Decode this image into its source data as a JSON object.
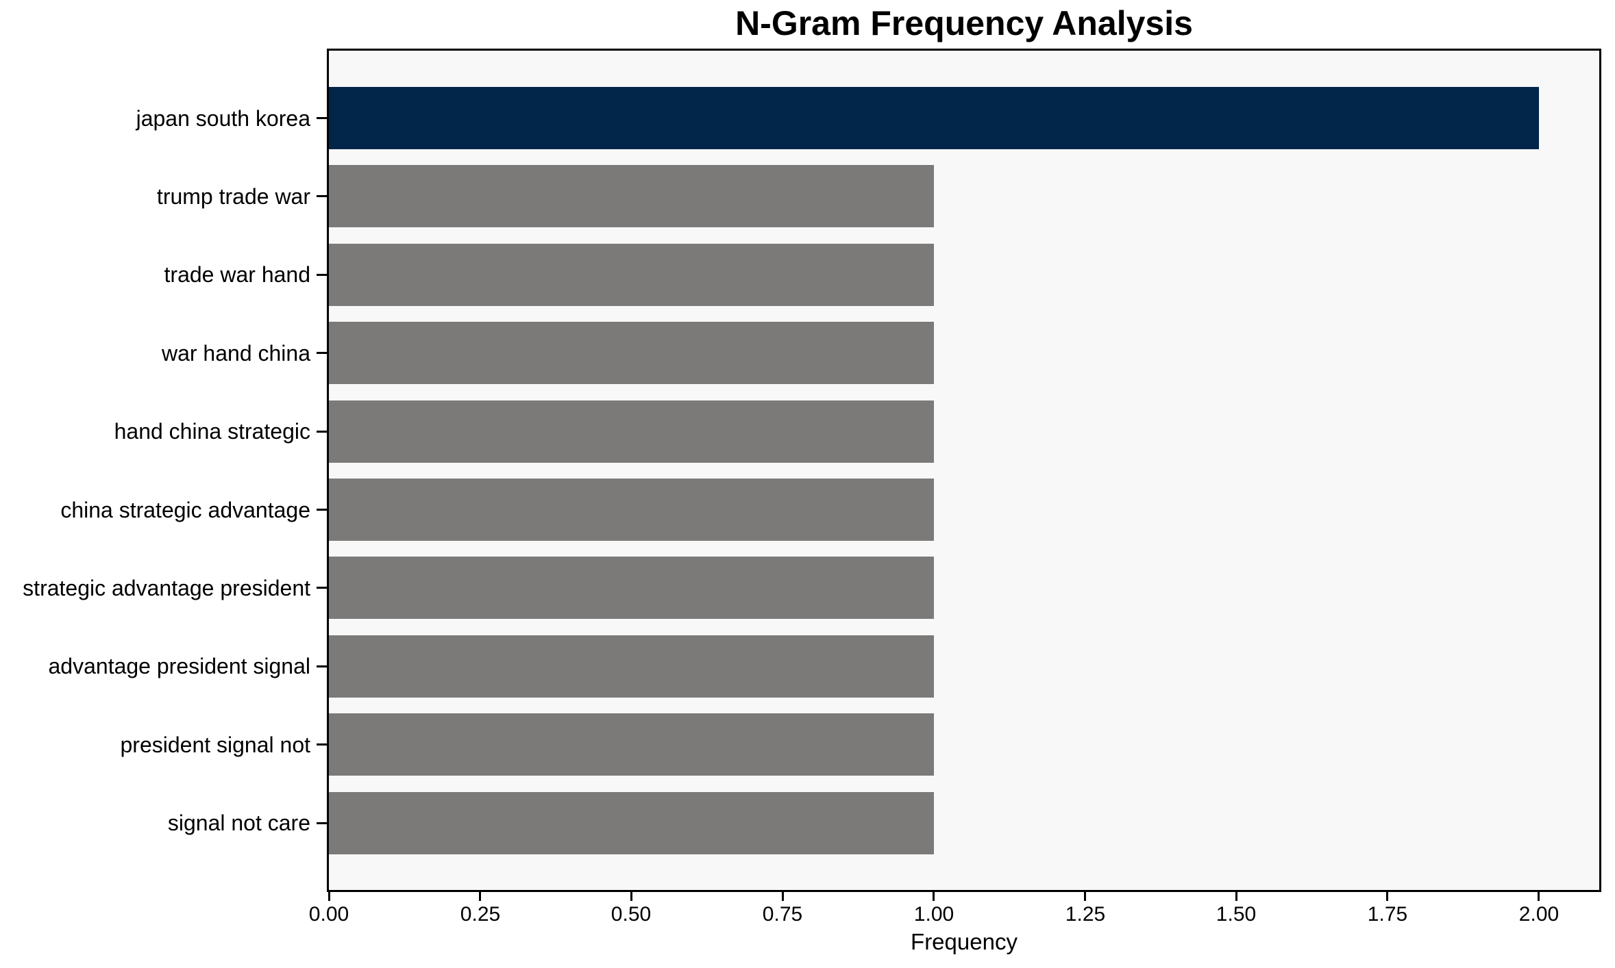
{
  "chart_data": {
    "type": "bar",
    "orientation": "horizontal",
    "title": "N-Gram Frequency Analysis",
    "xlabel": "Frequency",
    "ylabel": "",
    "categories": [
      "japan south korea",
      "trump trade war",
      "trade war hand",
      "war hand china",
      "hand china strategic",
      "china strategic advantage",
      "strategic advantage president",
      "advantage president signal",
      "president signal not",
      "signal not care"
    ],
    "values": [
      2.0,
      1.0,
      1.0,
      1.0,
      1.0,
      1.0,
      1.0,
      1.0,
      1.0,
      1.0
    ],
    "bar_colors": [
      "#02254A",
      "#7B7A78",
      "#7B7A78",
      "#7B7A78",
      "#7B7A78",
      "#7B7A78",
      "#7B7A78",
      "#7B7A78",
      "#7B7A78",
      "#7B7A78"
    ],
    "xlim": [
      0,
      2.1
    ],
    "xtick_values": [
      0.0,
      0.25,
      0.5,
      0.75,
      1.0,
      1.25,
      1.5,
      1.75,
      2.0
    ],
    "xtick_labels": [
      "0.00",
      "0.25",
      "0.50",
      "0.75",
      "1.00",
      "1.25",
      "1.50",
      "1.75",
      "2.00"
    ],
    "grid": false,
    "legend": null,
    "colors": {
      "highlight_bar": "#02254A",
      "default_bar": "#7B7A78",
      "plot_background": "#F8F8F8",
      "figure_background": "#FFFFFF",
      "axis": "#000000",
      "text": "#000000"
    }
  }
}
